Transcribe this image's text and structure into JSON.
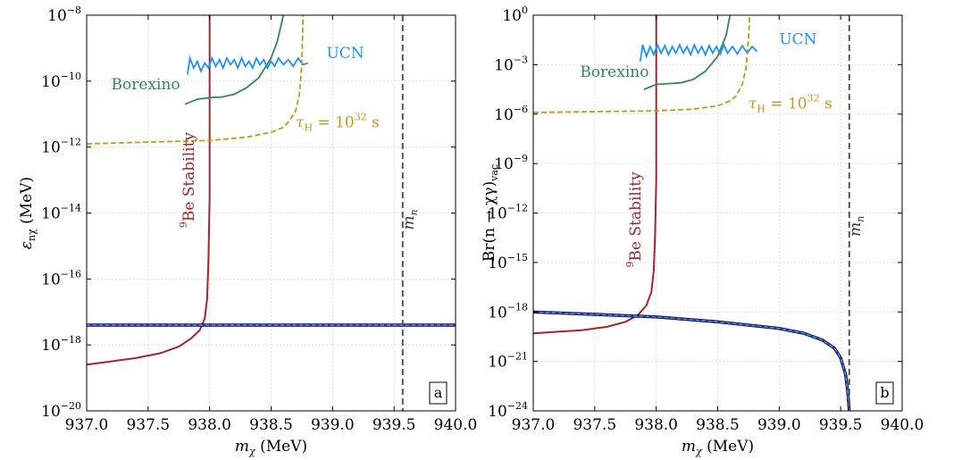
{
  "colors": {
    "be": "#a2262b",
    "borexino": "#2e8b57",
    "ucn": "#1e90ff",
    "tauH": "#c8961e",
    "mn": "#555555",
    "band": "#1f3fbf",
    "grid": "#d8d8d8"
  },
  "chart_data": [
    {
      "type": "line",
      "panel_tag": "a",
      "xlabel_main": "m",
      "xlabel_sub": "χ",
      "xlabel_unit": " (MeV)",
      "ylabel_main": "ε",
      "ylabel_sub": "nχ",
      "ylabel_unit": " (MeV)",
      "xlim": [
        937.0,
        940.0
      ],
      "ylim_log10": [
        -20,
        -8
      ],
      "yscale": "log",
      "grid": true,
      "x_ticks": [
        "937.0",
        "937.5",
        "938.0",
        "938.5",
        "939.0",
        "939.5",
        "940.0"
      ],
      "y_ticks": [
        {
          "base": "10",
          "exp": "−8",
          "log10": -8
        },
        {
          "base": "10",
          "exp": "−10",
          "log10": -10
        },
        {
          "base": "10",
          "exp": "−12",
          "log10": -12
        },
        {
          "base": "10",
          "exp": "−14",
          "log10": -14
        },
        {
          "base": "10",
          "exp": "−16",
          "log10": -16
        },
        {
          "base": "10",
          "exp": "−18",
          "log10": -18
        },
        {
          "base": "10",
          "exp": "−20",
          "log10": -20
        }
      ],
      "labels": {
        "be_pre": "9",
        "be_main": "Be Stability",
        "borexino": "Borexino",
        "ucn": "UCN",
        "tau_main": "τ",
        "tau_sub": "H",
        "tau_eq": " = 10",
        "tau_exp": "32",
        "tau_unit": " s",
        "mn_main": "m",
        "mn_sub": "n"
      },
      "series": [
        {
          "key": "be",
          "points": [
            [
              937.0,
              -18.6
            ],
            [
              937.2,
              -18.5
            ],
            [
              937.4,
              -18.4
            ],
            [
              937.6,
              -18.25
            ],
            [
              937.75,
              -18.05
            ],
            [
              937.85,
              -17.8
            ],
            [
              937.92,
              -17.55
            ],
            [
              937.96,
              -17.2
            ],
            [
              937.98,
              -16.6
            ],
            [
              937.99,
              -15.5
            ],
            [
              938.0,
              -13.5
            ],
            [
              938.0,
              -8.0
            ]
          ]
        },
        {
          "key": "borexino",
          "points": [
            [
              937.8,
              -10.7
            ],
            [
              937.9,
              -10.55
            ],
            [
              938.0,
              -10.5
            ],
            [
              938.1,
              -10.48
            ],
            [
              938.2,
              -10.4
            ],
            [
              938.3,
              -10.2
            ],
            [
              938.4,
              -9.9
            ],
            [
              938.5,
              -9.3
            ],
            [
              938.55,
              -8.8
            ],
            [
              938.6,
              -8.0
            ]
          ]
        },
        {
          "key": "ucn",
          "points": [
            [
              937.82,
              -9.8
            ],
            [
              937.84,
              -9.3
            ],
            [
              937.87,
              -9.6
            ],
            [
              937.9,
              -9.4
            ],
            [
              937.93,
              -9.7
            ],
            [
              937.96,
              -9.45
            ],
            [
              937.99,
              -9.6
            ],
            [
              938.02,
              -9.3
            ],
            [
              938.05,
              -9.55
            ],
            [
              938.08,
              -9.35
            ],
            [
              938.11,
              -9.6
            ],
            [
              938.14,
              -9.3
            ],
            [
              938.17,
              -9.5
            ],
            [
              938.2,
              -9.35
            ],
            [
              938.23,
              -9.6
            ],
            [
              938.26,
              -9.3
            ],
            [
              938.29,
              -9.55
            ],
            [
              938.32,
              -9.4
            ],
            [
              938.35,
              -9.6
            ],
            [
              938.38,
              -9.3
            ],
            [
              938.41,
              -9.5
            ],
            [
              938.44,
              -9.35
            ],
            [
              938.47,
              -9.6
            ],
            [
              938.5,
              -9.4
            ],
            [
              938.53,
              -9.55
            ],
            [
              938.56,
              -9.3
            ],
            [
              938.6,
              -9.5
            ],
            [
              938.64,
              -9.35
            ],
            [
              938.68,
              -9.55
            ],
            [
              938.72,
              -9.3
            ],
            [
              938.76,
              -9.5
            ],
            [
              938.8,
              -9.45
            ]
          ]
        },
        {
          "key": "tauH",
          "dashed": true,
          "points": [
            [
              937.0,
              -11.9
            ],
            [
              937.5,
              -11.85
            ],
            [
              938.0,
              -11.8
            ],
            [
              938.3,
              -11.7
            ],
            [
              938.5,
              -11.55
            ],
            [
              938.6,
              -11.4
            ],
            [
              938.65,
              -11.2
            ],
            [
              938.7,
              -10.9
            ],
            [
              938.73,
              -10.4
            ],
            [
              938.75,
              -9.5
            ],
            [
              938.76,
              -8.0
            ]
          ]
        },
        {
          "key": "band",
          "points": [
            [
              937.0,
              -17.4
            ],
            [
              940.0,
              -17.4
            ]
          ]
        }
      ],
      "mn_x": 939.57
    },
    {
      "type": "line",
      "panel_tag": "b",
      "xlabel_main": "m",
      "xlabel_sub": "χ",
      "xlabel_unit": " (MeV)",
      "ylabel_main": "Br(n → χγ)",
      "ylabel_sub": "vac",
      "ylabel_unit": "",
      "xlim": [
        937.0,
        940.0
      ],
      "ylim_log10": [
        -24,
        0
      ],
      "yscale": "log",
      "grid": true,
      "x_ticks": [
        "937.0",
        "937.5",
        "938.0",
        "938.5",
        "939.0",
        "939.5",
        "940.0"
      ],
      "y_ticks": [
        {
          "base": "10",
          "exp": "0",
          "log10": 0
        },
        {
          "base": "10",
          "exp": "−3",
          "log10": -3
        },
        {
          "base": "10",
          "exp": "−6",
          "log10": -6
        },
        {
          "base": "10",
          "exp": "−9",
          "log10": -9
        },
        {
          "base": "10",
          "exp": "−12",
          "log10": -12
        },
        {
          "base": "10",
          "exp": "−15",
          "log10": -15
        },
        {
          "base": "10",
          "exp": "−18",
          "log10": -18
        },
        {
          "base": "10",
          "exp": "−21",
          "log10": -21
        },
        {
          "base": "10",
          "exp": "−24",
          "log10": -24
        }
      ],
      "labels": {
        "be_pre": "9",
        "be_main": "Be Stability",
        "borexino": "Borexino",
        "ucn": "UCN",
        "tau_main": "τ",
        "tau_sub": "H",
        "tau_eq": " = 10",
        "tau_exp": "32",
        "tau_unit": " s",
        "mn_main": "m",
        "mn_sub": "n"
      },
      "series": [
        {
          "key": "be",
          "points": [
            [
              937.0,
              -19.3
            ],
            [
              937.2,
              -19.2
            ],
            [
              937.4,
              -19.1
            ],
            [
              937.6,
              -18.9
            ],
            [
              937.75,
              -18.6
            ],
            [
              937.85,
              -18.2
            ],
            [
              937.92,
              -17.6
            ],
            [
              937.96,
              -16.8
            ],
            [
              937.98,
              -15.5
            ],
            [
              937.99,
              -13.5
            ],
            [
              938.0,
              -10.0
            ],
            [
              938.0,
              0.0
            ]
          ]
        },
        {
          "key": "borexino",
          "points": [
            [
              937.9,
              -4.5
            ],
            [
              938.0,
              -4.2
            ],
            [
              938.1,
              -4.15
            ],
            [
              938.2,
              -4.1
            ],
            [
              938.3,
              -3.9
            ],
            [
              938.4,
              -3.4
            ],
            [
              938.5,
              -2.5
            ],
            [
              938.57,
              -1.2
            ],
            [
              938.6,
              0.0
            ]
          ]
        },
        {
          "key": "ucn",
          "points": [
            [
              937.87,
              -2.8
            ],
            [
              937.89,
              -1.8
            ],
            [
              937.92,
              -2.5
            ],
            [
              937.95,
              -1.9
            ],
            [
              937.98,
              -2.4
            ],
            [
              938.01,
              -1.8
            ],
            [
              938.04,
              -2.3
            ],
            [
              938.07,
              -1.85
            ],
            [
              938.1,
              -2.4
            ],
            [
              938.13,
              -1.9
            ],
            [
              938.16,
              -2.3
            ],
            [
              938.19,
              -1.8
            ],
            [
              938.22,
              -2.3
            ],
            [
              938.25,
              -1.9
            ],
            [
              938.28,
              -2.4
            ],
            [
              938.31,
              -1.8
            ],
            [
              938.34,
              -2.3
            ],
            [
              938.37,
              -1.9
            ],
            [
              938.4,
              -2.4
            ],
            [
              938.43,
              -1.85
            ],
            [
              938.46,
              -2.3
            ],
            [
              938.49,
              -1.9
            ],
            [
              938.52,
              -2.35
            ],
            [
              938.55,
              -1.8
            ],
            [
              938.58,
              -2.3
            ],
            [
              938.62,
              -1.9
            ],
            [
              938.66,
              -2.35
            ],
            [
              938.7,
              -1.85
            ],
            [
              938.74,
              -2.3
            ],
            [
              938.78,
              -1.9
            ],
            [
              938.82,
              -2.2
            ]
          ]
        },
        {
          "key": "tauH",
          "dashed": true,
          "points": [
            [
              937.0,
              -5.9
            ],
            [
              937.5,
              -5.85
            ],
            [
              938.0,
              -5.8
            ],
            [
              938.3,
              -5.7
            ],
            [
              938.5,
              -5.5
            ],
            [
              938.6,
              -5.2
            ],
            [
              938.65,
              -4.9
            ],
            [
              938.7,
              -4.2
            ],
            [
              938.73,
              -3.2
            ],
            [
              938.75,
              -1.5
            ],
            [
              938.76,
              0.0
            ]
          ]
        },
        {
          "key": "band",
          "points": [
            [
              937.0,
              -18.0
            ],
            [
              937.5,
              -18.15
            ],
            [
              938.0,
              -18.3
            ],
            [
              938.5,
              -18.6
            ],
            [
              939.0,
              -19.0
            ],
            [
              939.2,
              -19.3
            ],
            [
              939.35,
              -19.7
            ],
            [
              939.45,
              -20.2
            ],
            [
              939.5,
              -20.8
            ],
            [
              939.54,
              -21.8
            ],
            [
              939.56,
              -23.0
            ],
            [
              939.57,
              -24.0
            ]
          ]
        }
      ],
      "mn_x": 939.57
    }
  ]
}
